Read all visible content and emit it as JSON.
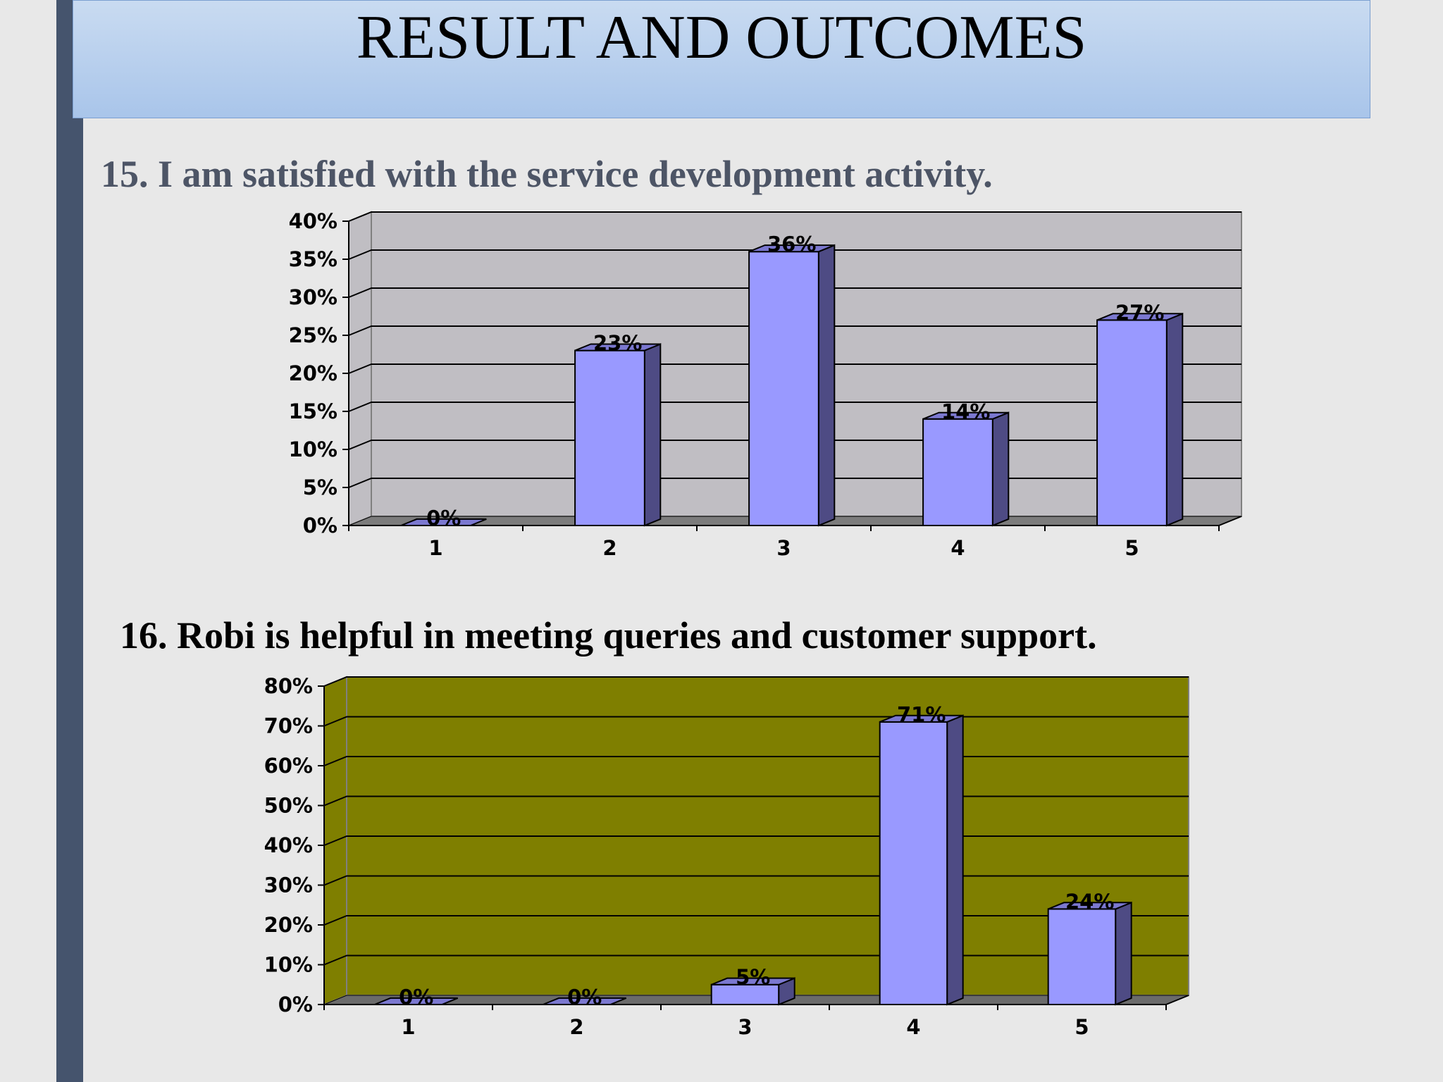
{
  "slide": {
    "title": "RESULT AND OUTCOMES",
    "colors": {
      "title_band_top": "#c9dbf1",
      "title_band_bottom": "#a9c5ea",
      "left_bar": "#45546d",
      "background": "#e8e8e8"
    }
  },
  "questions": [
    {
      "text": "15. I am satisfied with the service development activity."
    },
    {
      "text": "16. Robi is helpful in meeting queries and customer support."
    }
  ],
  "chart_data": [
    {
      "type": "bar",
      "style": "3d-column",
      "title": "",
      "xlabel": "",
      "ylabel": "",
      "categories": [
        "1",
        "2",
        "3",
        "4",
        "5"
      ],
      "values": [
        0,
        23,
        36,
        14,
        27
      ],
      "data_labels": [
        "0%",
        "23%",
        "36%",
        "14%",
        "27%"
      ],
      "ylim": [
        0,
        40
      ],
      "yticks": [
        "0%",
        "5%",
        "10%",
        "15%",
        "20%",
        "25%",
        "30%",
        "35%",
        "40%"
      ],
      "grid": true,
      "legend": "none",
      "colors": {
        "plot_wall": "#c0bec3",
        "floor": "#7c7c7c",
        "bar_front": "#9999ff",
        "bar_side": "#4e4b84",
        "bar_top": "#7b78d0"
      }
    },
    {
      "type": "bar",
      "style": "3d-column",
      "title": "",
      "xlabel": "",
      "ylabel": "",
      "categories": [
        "1",
        "2",
        "3",
        "4",
        "5"
      ],
      "values": [
        0,
        0,
        5,
        71,
        24
      ],
      "data_labels": [
        "0%",
        "0%",
        "5%",
        "71%",
        "24%"
      ],
      "ylim": [
        0,
        80
      ],
      "yticks": [
        "0%",
        "10%",
        "20%",
        "30%",
        "40%",
        "50%",
        "60%",
        "70%",
        "80%"
      ],
      "grid": true,
      "legend": "none",
      "colors": {
        "plot_wall": "#7f7f00",
        "floor": "#6b6b6b",
        "bar_front": "#9999ff",
        "bar_side": "#4e4b84",
        "bar_top": "#7b78d0"
      }
    }
  ]
}
